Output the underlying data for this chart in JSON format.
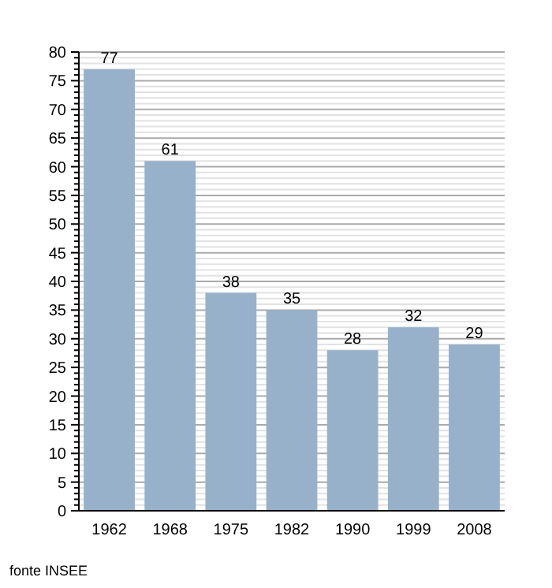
{
  "chart_data": {
    "type": "bar",
    "categories": [
      "1962",
      "1968",
      "1975",
      "1982",
      "1990",
      "1999",
      "2008"
    ],
    "values": [
      77,
      61,
      38,
      35,
      28,
      32,
      29
    ],
    "color": "#98b1cb",
    "data_labels": true,
    "grid": "y",
    "ylim": [
      0,
      80
    ],
    "yticks": [
      0,
      {
        "value": 1,
        "label": null
      },
      {
        "value": 2,
        "label": null
      },
      {
        "value": 3,
        "label": null
      },
      {
        "value": 4,
        "label": null
      },
      5,
      {
        "value": 6,
        "label": null
      },
      {
        "value": 7,
        "label": null
      },
      {
        "value": 8,
        "label": null
      },
      {
        "value": 9,
        "label": null
      },
      10,
      {
        "value": 11,
        "label": null
      },
      {
        "value": 12,
        "label": null
      },
      {
        "value": 13,
        "label": null
      },
      {
        "value": 14,
        "label": null
      },
      15,
      {
        "value": 16,
        "label": null
      },
      {
        "value": 17,
        "label": null
      },
      {
        "value": 18,
        "label": null
      },
      {
        "value": 19,
        "label": null
      },
      20,
      {
        "value": 21,
        "label": null
      },
      {
        "value": 22,
        "label": null
      },
      {
        "value": 23,
        "label": null
      },
      {
        "value": 24,
        "label": null
      },
      25,
      {
        "value": 26,
        "label": null
      },
      {
        "value": 27,
        "label": null
      },
      {
        "value": 28,
        "label": null
      },
      {
        "value": 29,
        "label": null
      },
      30,
      {
        "value": 31,
        "label": null
      },
      {
        "value": 32,
        "label": null
      },
      {
        "value": 33,
        "label": null
      },
      {
        "value": 34,
        "label": null
      },
      35,
      {
        "value": 36,
        "label": null
      },
      {
        "value": 37,
        "label": null
      },
      {
        "value": 38,
        "label": null
      },
      {
        "value": 39,
        "label": null
      },
      40,
      {
        "value": 41,
        "label": null
      },
      {
        "value": 42,
        "label": null
      },
      {
        "value": 43,
        "label": null
      },
      {
        "value": 44,
        "label": null
      },
      45,
      {
        "value": 46,
        "label": null
      },
      {
        "value": 47,
        "label": null
      },
      {
        "value": 48,
        "label": null
      },
      {
        "value": 49,
        "label": null
      },
      50,
      {
        "value": 51,
        "label": null
      },
      {
        "value": 52,
        "label": null
      },
      {
        "value": 53,
        "label": null
      },
      {
        "value": 54,
        "label": null
      },
      55,
      {
        "value": 56,
        "label": null
      },
      {
        "value": 57,
        "label": null
      },
      {
        "value": 58,
        "label": null
      },
      {
        "value": 59,
        "label": null
      },
      60,
      {
        "value": 61,
        "label": null
      },
      {
        "value": 62,
        "label": null
      },
      {
        "value": 63,
        "label": null
      },
      {
        "value": 64,
        "label": null
      },
      65,
      {
        "value": 66,
        "label": null
      },
      {
        "value": 67,
        "label": null
      },
      {
        "value": 68,
        "label": null
      },
      {
        "value": 69,
        "label": null
      },
      70,
      {
        "value": 71,
        "label": null
      },
      {
        "value": 72,
        "label": null
      },
      {
        "value": 73,
        "label": null
      },
      {
        "value": 74,
        "label": null
      },
      75,
      {
        "value": 76,
        "label": null
      },
      {
        "value": 77,
        "label": null
      },
      {
        "value": 78,
        "label": null
      },
      {
        "value": 79,
        "label": null
      },
      80
    ],
    "annotations": [
      "fonte INSEE"
    ]
  }
}
